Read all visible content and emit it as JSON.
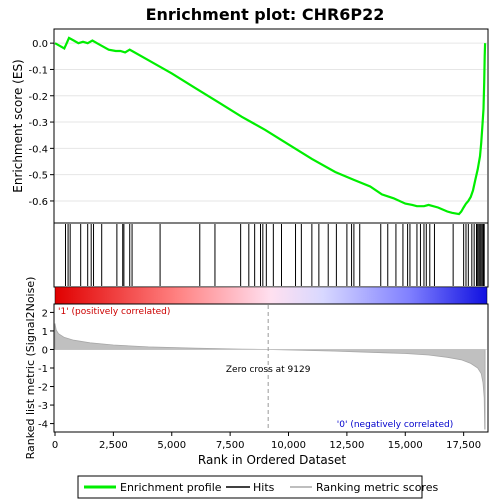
{
  "chart_data": {
    "type": "line",
    "title": "Enrichment plot: CHR6P22",
    "colors": {
      "profile": "#00ee00",
      "hits": "#000000",
      "metric_fill": "#c0c0c0",
      "metric_line": "#a8a8a8",
      "positive_label": "#cc0000",
      "negative_label": "#0000cc",
      "zero_cross_line": "#999999"
    },
    "top_panel": {
      "ylabel": "Enrichment score (ES)",
      "ylim": [
        -0.68,
        0.05
      ],
      "yticks": [
        0.0,
        -0.1,
        -0.2,
        -0.3,
        -0.4,
        -0.5,
        -0.6
      ],
      "ytick_labels": [
        "0.0",
        "-0.1",
        "-0.2",
        "-0.3",
        "-0.4",
        "-0.5",
        "-0.6"
      ],
      "series": [
        {
          "name": "Enrichment profile",
          "points": [
            [
              0,
              0.0
            ],
            [
              200,
              -0.01
            ],
            [
              400,
              -0.02
            ],
            [
              500,
              0.0
            ],
            [
              600,
              0.02
            ],
            [
              800,
              0.01
            ],
            [
              1000,
              0.0
            ],
            [
              1200,
              0.005
            ],
            [
              1400,
              0.0
            ],
            [
              1600,
              0.01
            ],
            [
              1800,
              0.0
            ],
            [
              2000,
              -0.01
            ],
            [
              2300,
              -0.025
            ],
            [
              2600,
              -0.03
            ],
            [
              2800,
              -0.03
            ],
            [
              3000,
              -0.035
            ],
            [
              3200,
              -0.025
            ],
            [
              3300,
              -0.03
            ],
            [
              4000,
              -0.065
            ],
            [
              4500,
              -0.09
            ],
            [
              5000,
              -0.115
            ],
            [
              6000,
              -0.17
            ],
            [
              7000,
              -0.225
            ],
            [
              8000,
              -0.28
            ],
            [
              9000,
              -0.33
            ],
            [
              10000,
              -0.385
            ],
            [
              11000,
              -0.44
            ],
            [
              12000,
              -0.49
            ],
            [
              12800,
              -0.52
            ],
            [
              13500,
              -0.545
            ],
            [
              14000,
              -0.575
            ],
            [
              14500,
              -0.59
            ],
            [
              15000,
              -0.61
            ],
            [
              15300,
              -0.615
            ],
            [
              15500,
              -0.62
            ],
            [
              15800,
              -0.62
            ],
            [
              16000,
              -0.615
            ],
            [
              16400,
              -0.625
            ],
            [
              16800,
              -0.64
            ],
            [
              17000,
              -0.645
            ],
            [
              17300,
              -0.65
            ],
            [
              17400,
              -0.64
            ],
            [
              17500,
              -0.625
            ],
            [
              17600,
              -0.61
            ],
            [
              17700,
              -0.6
            ],
            [
              17800,
              -0.585
            ],
            [
              17900,
              -0.56
            ],
            [
              18000,
              -0.52
            ],
            [
              18100,
              -0.48
            ],
            [
              18200,
              -0.43
            ],
            [
              18250,
              -0.38
            ],
            [
              18300,
              -0.32
            ],
            [
              18350,
              -0.25
            ],
            [
              18380,
              -0.15
            ],
            [
              18400,
              -0.05
            ],
            [
              18420,
              0.0
            ]
          ]
        }
      ]
    },
    "hits_panel": {
      "positions": [
        450,
        560,
        650,
        1100,
        1400,
        1550,
        1650,
        2000,
        2650,
        2900,
        2950,
        3200,
        3300,
        4500,
        6200,
        6850,
        7950,
        8300,
        8550,
        8800,
        8900,
        9050,
        9350,
        9700,
        10300,
        10550,
        11000,
        11300,
        11700,
        12050,
        12500,
        12700,
        12800,
        13050,
        13950,
        14250,
        14600,
        14900,
        15100,
        15200,
        15500,
        15650,
        15800,
        15900,
        16050,
        16250,
        17050,
        17500,
        17600,
        17700,
        17850,
        17950,
        18050,
        18100,
        18150,
        18200,
        18250,
        18300,
        18350,
        18380
      ]
    },
    "metric_panel": {
      "ylabel": "Ranked list metric (Signal2Noise)",
      "xlabel": "Rank in Ordered Dataset",
      "ylim": [
        -4.4,
        2.4
      ],
      "yticks": [
        2,
        1,
        0,
        -1,
        -2,
        -3,
        -4
      ],
      "ytick_labels": [
        "2",
        "1",
        "0",
        "-1",
        "-2",
        "-3",
        "-4"
      ],
      "xlim": [
        0,
        18500
      ],
      "xticks": [
        0,
        2500,
        5000,
        7500,
        10000,
        12500,
        15000,
        17500
      ],
      "xtick_labels": [
        "0",
        "2,500",
        "5,000",
        "7,500",
        "10,000",
        "12,500",
        "15,000",
        "17,500"
      ],
      "curve": [
        [
          0,
          1.4
        ],
        [
          50,
          1.05
        ],
        [
          150,
          0.85
        ],
        [
          400,
          0.65
        ],
        [
          800,
          0.5
        ],
        [
          1500,
          0.36
        ],
        [
          2500,
          0.24
        ],
        [
          4000,
          0.14
        ],
        [
          6000,
          0.07
        ],
        [
          8000,
          0.02
        ],
        [
          9129,
          0.0
        ],
        [
          10500,
          -0.04
        ],
        [
          12000,
          -0.09
        ],
        [
          13500,
          -0.15
        ],
        [
          15000,
          -0.22
        ],
        [
          16000,
          -0.3
        ],
        [
          16800,
          -0.42
        ],
        [
          17400,
          -0.56
        ],
        [
          17800,
          -0.75
        ],
        [
          18100,
          -1.0
        ],
        [
          18250,
          -1.3
        ],
        [
          18330,
          -1.8
        ],
        [
          18380,
          -2.6
        ],
        [
          18400,
          -4.3
        ],
        [
          18420,
          -4.3
        ]
      ],
      "zero_cross_label": "Zero cross at 9129",
      "zero_cross": 9129,
      "positive_label": "'1' (positively correlated)",
      "negative_label": "'0' (negatively correlated)"
    },
    "legend": {
      "placement": "bottom",
      "entries": [
        "Enrichment profile",
        "Hits",
        "Ranking metric scores"
      ]
    }
  }
}
